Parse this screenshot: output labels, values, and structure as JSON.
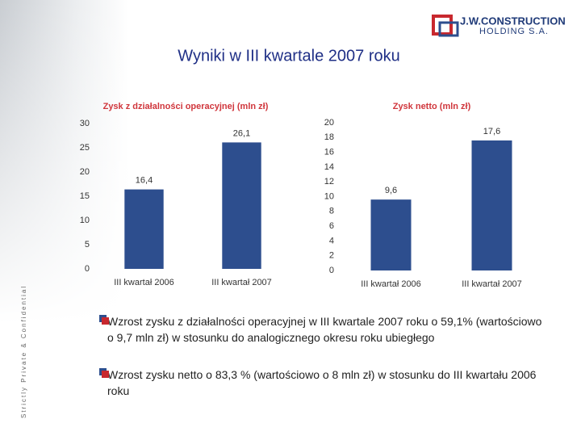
{
  "slide_title": "Wyniki w III kwartale 2007 roku",
  "logo": {
    "name": "J.W.CONSTRUCTION",
    "subtitle": "HOLDING S.A."
  },
  "side_text": "Strictly Private & Confidential",
  "chart_data": [
    {
      "type": "bar",
      "title": "Zysk z działalności operacyjnej (mln zł)",
      "categories": [
        "III kwartał 2006",
        "III kwartał 2007"
      ],
      "values": [
        16.4,
        26.1
      ],
      "value_labels": [
        "16,4",
        "26,1"
      ],
      "color": "#2d4e8e",
      "ylim": [
        0,
        30
      ],
      "yticks": [
        0,
        5,
        10,
        15,
        20,
        25,
        30
      ],
      "grid": false
    },
    {
      "type": "bar",
      "title": "Zysk netto (mln zł)",
      "categories": [
        "III kwartał 2006",
        "III kwartał 2007"
      ],
      "values": [
        9.6,
        17.6
      ],
      "value_labels": [
        "9,6",
        "17,6"
      ],
      "color": "#2d4e8e",
      "ylim": [
        0,
        20
      ],
      "yticks": [
        0,
        2,
        4,
        6,
        8,
        10,
        12,
        14,
        16,
        18,
        20
      ],
      "grid": false
    }
  ],
  "bullets": [
    "Wzrost zysku z działalności operacyjnej w III kwartale 2007 roku o 59,1% (wartościowo o 9,7 mln zł) w stosunku do analogicznego okresu roku ubiegłego",
    "Wzrost zysku netto o 83,3 % (wartościowo o 8 mln zł) w stosunku do III kwartału 2006 roku"
  ]
}
